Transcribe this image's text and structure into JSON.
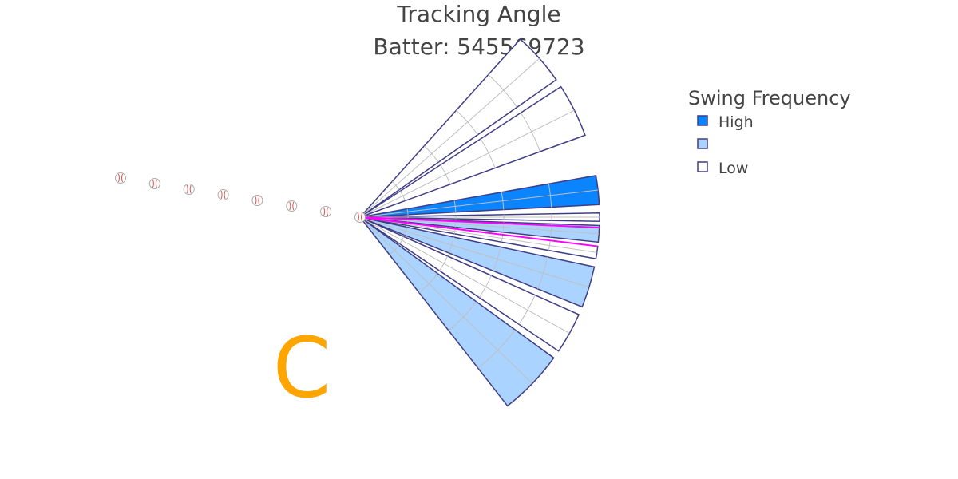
{
  "title": "Tracking Angle",
  "subtitle": "Batter: 545569723",
  "legend": {
    "title": "Swing Frequency",
    "items": [
      {
        "label": "High",
        "color": "#0a84ff"
      },
      {
        "label": "",
        "color": "#aad4ff"
      },
      {
        "label": "Low",
        "color": "#ffffff"
      }
    ]
  },
  "letter": {
    "text": "C",
    "color": "#ffa500"
  },
  "colors": {
    "high": "#0a84ff",
    "mid": "#aad4ff",
    "low": "#ffffff",
    "outline": "#3f3d85",
    "highlight": "#ff00ff",
    "grid": "#bfbfbf",
    "seam": "#d9534f"
  },
  "chart_data": {
    "type": "polar_wedges",
    "angle_unit": "degrees",
    "angular_range": [
      -60,
      60
    ],
    "wedges": [
      {
        "from": 35,
        "to": 48,
        "frequency": "low"
      },
      {
        "from": 20,
        "to": 33,
        "frequency": "low"
      },
      {
        "from": 3,
        "to": 10,
        "frequency": "high"
      },
      {
        "from": -1,
        "to": 1,
        "frequency": "low"
      },
      {
        "from": -6,
        "to": -2,
        "frequency": "mid"
      },
      {
        "from": -10,
        "to": -7,
        "frequency": "low"
      },
      {
        "from": -22,
        "to": -12,
        "frequency": "mid"
      },
      {
        "from": -34,
        "to": -24,
        "frequency": "low"
      },
      {
        "from": -52,
        "to": -36,
        "frequency": "mid"
      }
    ],
    "highlight_lines_deg": [
      -2.5,
      -7
    ],
    "ball_trail_count": 8
  }
}
